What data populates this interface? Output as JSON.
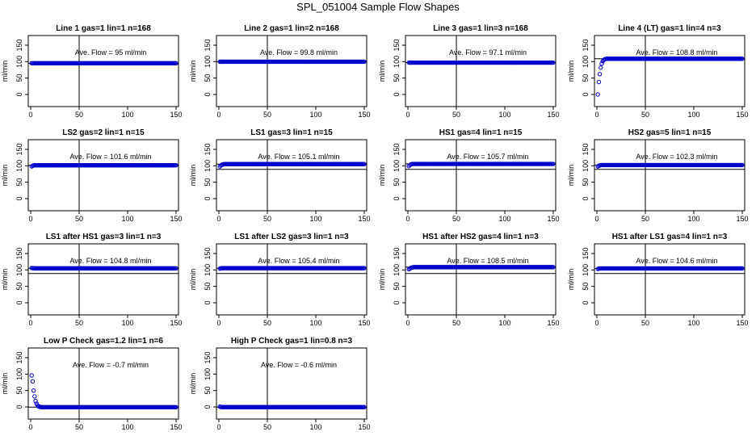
{
  "title": "SPL_051004  Sample Flow Shapes",
  "chart_data": [
    {
      "type": "scatter",
      "title": "Line 1 gas=1 lin=1 n=168",
      "ylabel": "ml/min",
      "annotation": "Ave. Flow =  95  ml/min",
      "ave": 95,
      "xlim": [
        0,
        150
      ],
      "ylim": [
        0,
        150
      ],
      "x_ticks": [
        0,
        50,
        100,
        150
      ],
      "y_ticks": [
        0,
        50,
        100,
        150
      ],
      "vline_x": 50,
      "hlines": [
        95
      ],
      "start_values": [
        95,
        95,
        95,
        95,
        95,
        95,
        95,
        95,
        95,
        95
      ],
      "plateau": 95,
      "series_color": "#0000cc"
    },
    {
      "type": "scatter",
      "title": "Line 2 gas=1 lin=2 n=168",
      "ylabel": "ml/min",
      "annotation": "Ave. Flow =  99.8  ml/min",
      "ave": 99.8,
      "xlim": [
        0,
        150
      ],
      "ylim": [
        0,
        150
      ],
      "x_ticks": [
        0,
        50,
        100,
        150
      ],
      "y_ticks": [
        0,
        50,
        100,
        150
      ],
      "vline_x": 50,
      "hlines": [
        99.8
      ],
      "start_values": [
        99.8,
        99.8,
        99.8,
        99.8,
        99.8,
        99.8,
        99.8,
        99.8,
        99.8,
        99.8
      ],
      "plateau": 99.8,
      "series_color": "#0000cc"
    },
    {
      "type": "scatter",
      "title": "Line 3 gas=1 lin=3 n=168",
      "ylabel": "ml/min",
      "annotation": "Ave. Flow =  97.1  ml/min",
      "ave": 97.1,
      "xlim": [
        0,
        150
      ],
      "ylim": [
        0,
        150
      ],
      "x_ticks": [
        0,
        50,
        100,
        150
      ],
      "y_ticks": [
        0,
        50,
        100,
        150
      ],
      "vline_x": 50,
      "hlines": [
        97.1
      ],
      "start_values": [
        97.1,
        97.1,
        97.1,
        97.1,
        97.1,
        97.1,
        97.1,
        97.1,
        97.1,
        97.1
      ],
      "plateau": 97.1,
      "series_color": "#0000cc"
    },
    {
      "type": "scatter",
      "title": "Line 4 (LT) gas=1 lin=4 n=3",
      "ylabel": "ml/min",
      "annotation": "Ave. Flow =  108.8  ml/min",
      "ave": 108.8,
      "xlim": [
        0,
        150
      ],
      "ylim": [
        0,
        150
      ],
      "x_ticks": [
        0,
        50,
        100,
        150
      ],
      "y_ticks": [
        0,
        50,
        100,
        150
      ],
      "vline_x": 50,
      "hlines": [
        108.8
      ],
      "start_values": [
        0,
        38,
        62,
        82,
        94,
        101,
        105,
        107,
        108,
        108.8
      ],
      "plateau": 108.8,
      "series_color": "#0000cc"
    },
    {
      "type": "scatter",
      "title": "LS2 gas=2 lin=1 n=15",
      "ylabel": "ml/min",
      "annotation": "Ave. Flow =  101.6  ml/min",
      "ave": 101.6,
      "xlim": [
        0,
        150
      ],
      "ylim": [
        0,
        150
      ],
      "x_ticks": [
        0,
        50,
        100,
        150
      ],
      "y_ticks": [
        0,
        50,
        100,
        150
      ],
      "vline_x": 50,
      "hlines": [
        101.6
      ],
      "start_values": [
        98,
        100,
        101,
        101.6,
        101.6,
        101.6,
        101.6,
        101.6,
        101.6,
        101.6
      ],
      "plateau": 101.6,
      "series_color": "#0000cc"
    },
    {
      "type": "scatter",
      "title": "LS1 gas=3 lin=1 n=15",
      "ylabel": "ml/min",
      "annotation": "Ave. Flow =  105.1  ml/min",
      "ave": 105.1,
      "xlim": [
        0,
        150
      ],
      "ylim": [
        0,
        150
      ],
      "x_ticks": [
        0,
        50,
        100,
        150
      ],
      "y_ticks": [
        0,
        50,
        100,
        150
      ],
      "vline_x": 50,
      "hlines": [
        105.1,
        89
      ],
      "start_values": [
        98,
        101,
        103,
        104,
        105.1,
        105.1,
        105.1,
        105.1,
        105.1,
        105.1
      ],
      "plateau": 105.1,
      "series_color": "#0000cc"
    },
    {
      "type": "scatter",
      "title": "HS1 gas=4 lin=1 n=15",
      "ylabel": "ml/min",
      "annotation": "Ave. Flow =  105.7  ml/min",
      "ave": 105.7,
      "xlim": [
        0,
        150
      ],
      "ylim": [
        0,
        150
      ],
      "x_ticks": [
        0,
        50,
        100,
        150
      ],
      "y_ticks": [
        0,
        50,
        100,
        150
      ],
      "vline_x": 50,
      "hlines": [
        105.7,
        89
      ],
      "start_values": [
        99,
        102,
        104,
        105,
        105.7,
        105.7,
        105.7,
        105.7,
        105.7,
        105.7
      ],
      "plateau": 105.7,
      "series_color": "#0000cc"
    },
    {
      "type": "scatter",
      "title": "HS2 gas=5 lin=1 n=15",
      "ylabel": "ml/min",
      "annotation": "Ave. Flow =  102.3  ml/min",
      "ave": 102.3,
      "xlim": [
        0,
        150
      ],
      "ylim": [
        0,
        150
      ],
      "x_ticks": [
        0,
        50,
        100,
        150
      ],
      "y_ticks": [
        0,
        50,
        100,
        150
      ],
      "vline_x": 50,
      "hlines": [
        102.3,
        89
      ],
      "start_values": [
        98,
        100,
        101,
        102,
        102.3,
        102.3,
        102.3,
        102.3,
        102.3,
        102.3
      ],
      "plateau": 102.3,
      "series_color": "#0000cc"
    },
    {
      "type": "scatter",
      "title": "LS1 after HS1 gas=3 lin=1 n=3",
      "ylabel": "ml/min",
      "annotation": "Ave. Flow =  104.8  ml/min",
      "ave": 104.8,
      "xlim": [
        0,
        150
      ],
      "ylim": [
        0,
        150
      ],
      "x_ticks": [
        0,
        50,
        100,
        150
      ],
      "y_ticks": [
        0,
        50,
        100,
        150
      ],
      "vline_x": 50,
      "hlines": [
        104.8,
        89
      ],
      "start_values": [
        106,
        105.5,
        105,
        104.8,
        104.8,
        104.8,
        104.8,
        104.8,
        104.8,
        104.8
      ],
      "plateau": 104.8,
      "series_color": "#0000cc"
    },
    {
      "type": "scatter",
      "title": "LS1 after LS2 gas=3 lin=1 n=3",
      "ylabel": "ml/min",
      "annotation": "Ave. Flow =  105.4  ml/min",
      "ave": 105.4,
      "xlim": [
        0,
        150
      ],
      "ylim": [
        0,
        150
      ],
      "x_ticks": [
        0,
        50,
        100,
        150
      ],
      "y_ticks": [
        0,
        50,
        100,
        150
      ],
      "vline_x": 50,
      "hlines": [
        105.4,
        89
      ],
      "start_values": [
        104,
        105,
        105.4,
        105.4,
        105.4,
        105.4,
        105.4,
        105.4,
        105.4,
        105.4
      ],
      "plateau": 105.4,
      "series_color": "#0000cc"
    },
    {
      "type": "scatter",
      "title": "HS1 after HS2 gas=4 lin=1 n=3",
      "ylabel": "ml/min",
      "annotation": "Ave. Flow =  108.5  ml/min",
      "ave": 108.5,
      "xlim": [
        0,
        150
      ],
      "ylim": [
        0,
        150
      ],
      "x_ticks": [
        0,
        50,
        100,
        150
      ],
      "y_ticks": [
        0,
        50,
        100,
        150
      ],
      "vline_x": 50,
      "hlines": [
        108.5,
        89
      ],
      "start_values": [
        102,
        104,
        106,
        107,
        108,
        108.5,
        108.5,
        108.5,
        108.5,
        108.5
      ],
      "plateau": 108.5,
      "series_color": "#0000cc"
    },
    {
      "type": "scatter",
      "title": "HS1 after LS1 gas=4 lin=1 n=3",
      "ylabel": "ml/min",
      "annotation": "Ave. Flow =  104.6  ml/min",
      "ave": 104.6,
      "xlim": [
        0,
        150
      ],
      "ylim": [
        0,
        150
      ],
      "x_ticks": [
        0,
        50,
        100,
        150
      ],
      "y_ticks": [
        0,
        50,
        100,
        150
      ],
      "vline_x": 50,
      "hlines": [
        104.6,
        89
      ],
      "start_values": [
        103,
        104,
        104.6,
        104.6,
        104.6,
        104.6,
        104.6,
        104.6,
        104.6,
        104.6
      ],
      "plateau": 104.6,
      "series_color": "#0000cc"
    },
    {
      "type": "scatter",
      "title": "Low P Check gas=1.2 lin=1 n=6",
      "ylabel": "ml/min",
      "annotation": "Ave. Flow =  -0.7  ml/min",
      "ave": -0.7,
      "xlim": [
        0,
        150
      ],
      "ylim": [
        0,
        150
      ],
      "x_ticks": [
        0,
        50,
        100,
        150
      ],
      "y_ticks": [
        0,
        50,
        100,
        150
      ],
      "vline_x": 50,
      "hlines": [
        -0.7
      ],
      "start_values": [
        96,
        78,
        50,
        32,
        18,
        10,
        5,
        2,
        0.5,
        0
      ],
      "plateau": -0.7,
      "series_color": "#0000cc"
    },
    {
      "type": "scatter",
      "title": "High P Check gas=1 lin=0.8 n=3",
      "ylabel": "ml/min",
      "annotation": "Ave. Flow =  -0.6  ml/min",
      "ave": -0.6,
      "xlim": [
        0,
        150
      ],
      "ylim": [
        0,
        150
      ],
      "x_ticks": [
        0,
        50,
        100,
        150
      ],
      "y_ticks": [
        0,
        50,
        100,
        150
      ],
      "vline_x": 50,
      "hlines": [
        -0.6
      ],
      "start_values": [
        1,
        0,
        -0.6,
        -0.6,
        -0.6,
        -0.6,
        -0.6,
        -0.6,
        -0.6,
        -0.6
      ],
      "plateau": -0.6,
      "series_color": "#0000cc"
    }
  ]
}
